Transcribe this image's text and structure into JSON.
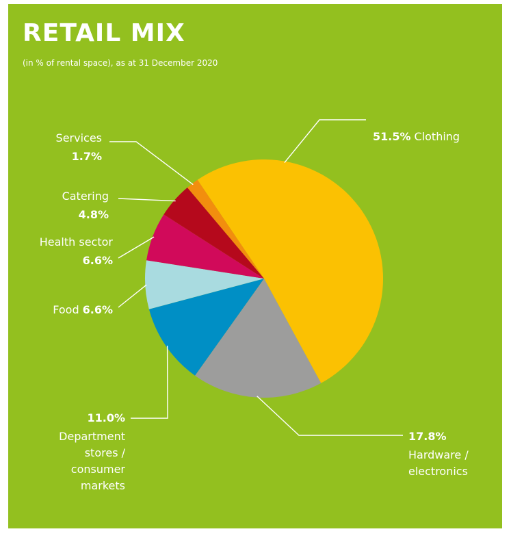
{
  "colors": {
    "page_background": "#ffffff",
    "panel_background": "#93c01f",
    "title_text": "#ffffff",
    "label_text": "#ffffff",
    "leader_lines": "#ffffff"
  },
  "header": {
    "title": "RETAIL MIX",
    "subtitle": "(in % of rental space), as at 31 December 2020"
  },
  "chart_data": {
    "type": "pie",
    "title": "RETAIL MIX",
    "subtitle": "(in % of rental space), as at 31 December 2020",
    "start_angle_deg": -34,
    "direction": "clockwise",
    "slices": [
      {
        "key": "clothing",
        "label": "Clothing",
        "value": 51.5,
        "value_label": "51.5%",
        "color": "#fbc102"
      },
      {
        "key": "hardware",
        "label": "Hardware / electronics",
        "value": 17.8,
        "value_label": "17.8%",
        "color": "#9d9d9c",
        "label_lines": [
          "Hardware /",
          "electronics"
        ]
      },
      {
        "key": "department",
        "label": "Department stores / consumer markets",
        "value": 11.0,
        "value_label": "11.0%",
        "color": "#008fc5",
        "label_lines": [
          "Department",
          "stores /",
          "consumer",
          "markets"
        ]
      },
      {
        "key": "food",
        "label": "Food",
        "value": 6.6,
        "value_label": "6.6%",
        "color": "#a9dbe0"
      },
      {
        "key": "health",
        "label": "Health sector",
        "value": 6.6,
        "value_label": "6.6%",
        "color": "#d10a5a"
      },
      {
        "key": "catering",
        "label": "Catering",
        "value": 4.8,
        "value_label": "4.8%",
        "color": "#b5091c"
      },
      {
        "key": "services",
        "label": "Services",
        "value": 1.7,
        "value_label": "1.7%",
        "color": "#f28e0e"
      }
    ]
  }
}
